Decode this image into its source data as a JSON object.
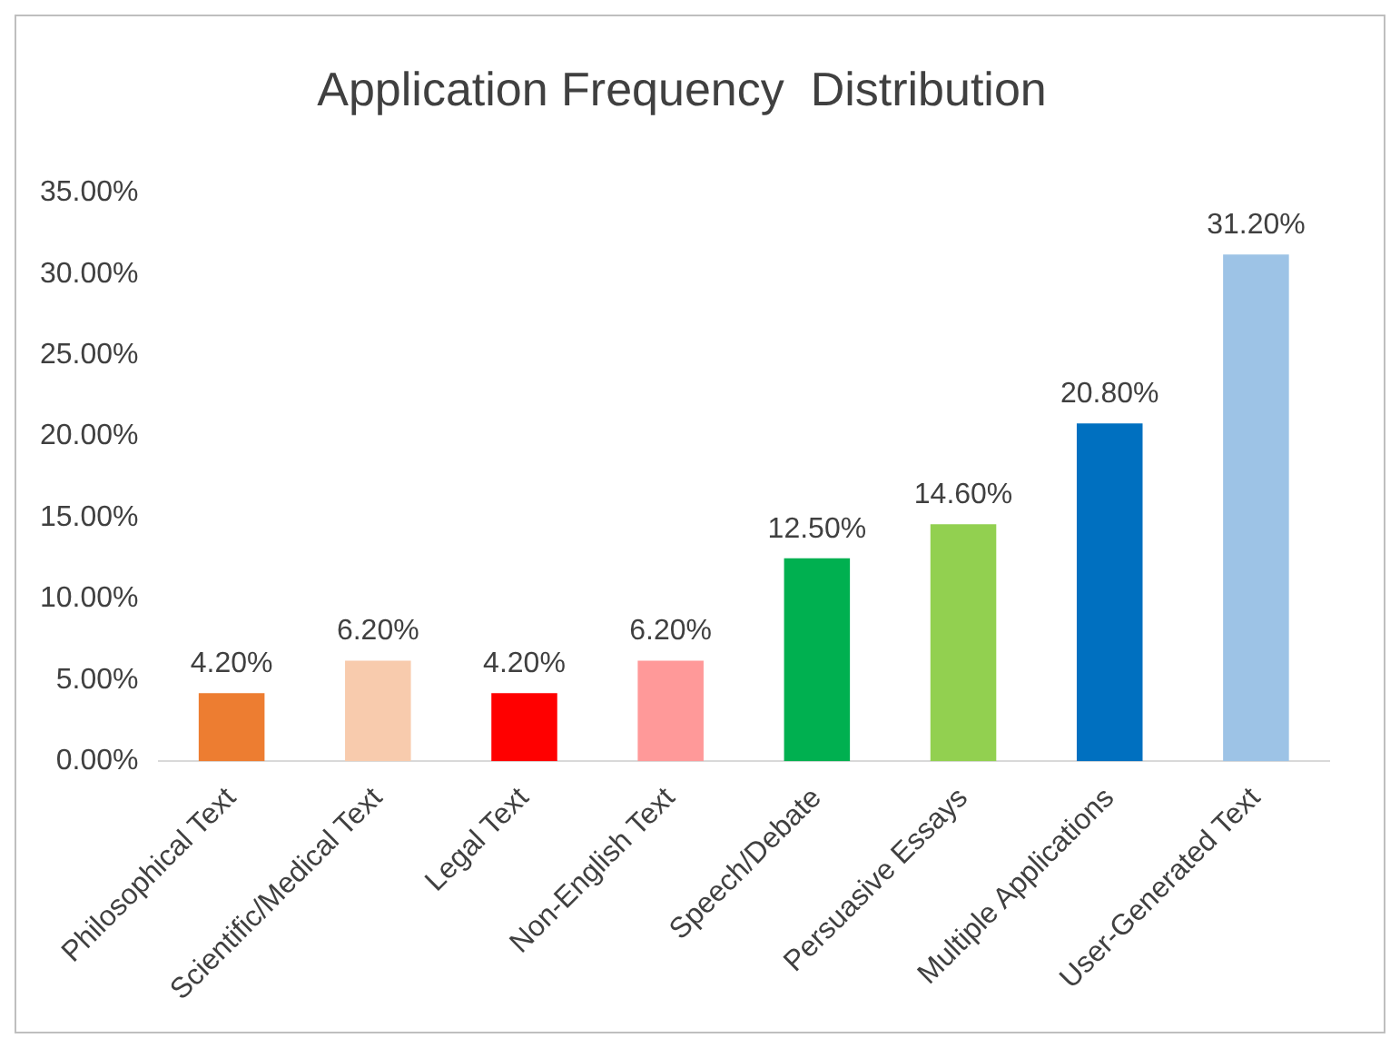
{
  "chart_data": {
    "type": "bar",
    "title": "Application Frequency  Distribution",
    "categories": [
      "Philosophical Text",
      "Scientific/Medical Text",
      "Legal Text",
      "Non-English Text",
      "Speech/Debate",
      "Persuasive Essays",
      "Multiple Applications",
      "User-Generated Text"
    ],
    "values": [
      4.2,
      6.2,
      4.2,
      6.2,
      12.5,
      14.6,
      20.8,
      31.2
    ],
    "colors": [
      "#ed7d31",
      "#f8cbad",
      "#ff0000",
      "#ff9999",
      "#00b050",
      "#92d050",
      "#0070c0",
      "#9dc3e6"
    ],
    "value_labels": [
      "4.20%",
      "6.20%",
      "4.20%",
      "6.20%",
      "12.50%",
      "14.60%",
      "20.80%",
      "31.20%"
    ],
    "ylim": [
      0,
      35
    ],
    "yticks": [
      {
        "value": 0,
        "label": "0.00%"
      },
      {
        "value": 5,
        "label": "5.00%"
      },
      {
        "value": 10,
        "label": "10.00%"
      },
      {
        "value": 15,
        "label": "15.00%"
      },
      {
        "value": 20,
        "label": "20.00%"
      },
      {
        "value": 25,
        "label": "25.00%"
      },
      {
        "value": 30,
        "label": "30.00%"
      },
      {
        "value": 35,
        "label": "35.00%"
      }
    ],
    "grid": false
  }
}
